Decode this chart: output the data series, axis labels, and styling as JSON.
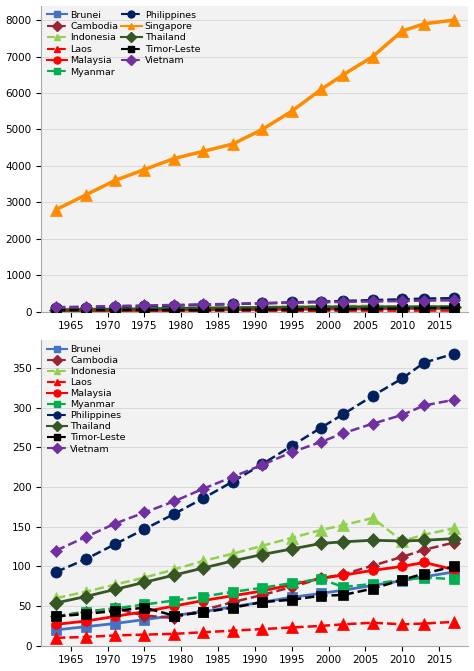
{
  "years": [
    1963,
    1967,
    1971,
    1975,
    1979,
    1983,
    1987,
    1991,
    1995,
    1999,
    2002,
    2006,
    2010,
    2013,
    2017
  ],
  "Brunei": [
    20,
    24,
    28,
    33,
    38,
    43,
    49,
    55,
    61,
    66,
    70,
    76,
    82,
    87,
    93
  ],
  "Cambodia": [
    37,
    43,
    47,
    38,
    35,
    45,
    55,
    64,
    74,
    85,
    90,
    101,
    112,
    121,
    130
  ],
  "Indonesia": [
    60,
    68,
    77,
    86,
    96,
    107,
    116,
    126,
    136,
    146,
    152,
    161,
    132,
    140,
    148
  ],
  "Laos": [
    10,
    11,
    13,
    14,
    15,
    17,
    19,
    21,
    23,
    25,
    27,
    29,
    27,
    28,
    30
  ],
  "Malaysia": [
    27,
    31,
    37,
    43,
    50,
    57,
    63,
    69,
    77,
    85,
    89,
    95,
    100,
    105,
    96
  ],
  "Myanmar": [
    37,
    42,
    47,
    52,
    57,
    62,
    68,
    73,
    79,
    84,
    74,
    78,
    83,
    86,
    84
  ],
  "Philippines": [
    93,
    109,
    128,
    147,
    166,
    186,
    207,
    229,
    252,
    275,
    292,
    315,
    337,
    357,
    368
  ],
  "Singapore": [
    2800,
    3200,
    3600,
    3900,
    4200,
    4400,
    4600,
    5000,
    5500,
    6100,
    6500,
    7000,
    7700,
    7900,
    8000
  ],
  "Thailand": [
    54,
    62,
    71,
    80,
    89,
    98,
    107,
    115,
    122,
    129,
    131,
    133,
    132,
    133,
    135
  ],
  "Timor-Leste": [
    37,
    40,
    44,
    48,
    38,
    42,
    48,
    55,
    58,
    63,
    64,
    72,
    83,
    91,
    100
  ],
  "Vietnam": [
    120,
    137,
    154,
    168,
    182,
    198,
    213,
    228,
    244,
    257,
    268,
    280,
    291,
    303,
    310
  ],
  "styles": {
    "Brunei": {
      "color": "#4472c4",
      "linestyle": "-",
      "marker": "s",
      "ms": 7,
      "lw": 2.0
    },
    "Cambodia": {
      "color": "#9b2335",
      "linestyle": "--",
      "marker": "D",
      "ms": 6,
      "lw": 1.8
    },
    "Indonesia": {
      "color": "#92d050",
      "linestyle": "--",
      "marker": "^",
      "ms": 8,
      "lw": 1.8
    },
    "Laos": {
      "color": "#ff0000",
      "linestyle": "--",
      "marker": "^",
      "ms": 8,
      "lw": 1.8
    },
    "Malaysia": {
      "color": "#ff0000",
      "linestyle": "-",
      "marker": "o",
      "ms": 7,
      "lw": 2.0
    },
    "Myanmar": {
      "color": "#00b050",
      "linestyle": "--",
      "marker": "s",
      "ms": 7,
      "lw": 1.8
    },
    "Philippines": {
      "color": "#002060",
      "linestyle": "--",
      "marker": "o",
      "ms": 8,
      "lw": 1.8
    },
    "Singapore": {
      "color": "#ff8c00",
      "linestyle": "-",
      "marker": "^",
      "ms": 9,
      "lw": 2.5
    },
    "Thailand": {
      "color": "#375623",
      "linestyle": "-",
      "marker": "D",
      "ms": 7,
      "lw": 2.0
    },
    "Timor-Leste": {
      "color": "#000000",
      "linestyle": "--",
      "marker": "s",
      "ms": 7,
      "lw": 1.8
    },
    "Vietnam": {
      "color": "#7030a0",
      "linestyle": "--",
      "marker": "D",
      "ms": 6,
      "lw": 1.8
    }
  },
  "top_col1": [
    "Brunei",
    "Indonesia",
    "Malaysia",
    "Philippines",
    "Thailand",
    "Vietnam"
  ],
  "top_col2": [
    "Cambodia",
    "Laos",
    "Myanmar",
    "Singapore",
    "Timor-Leste"
  ],
  "top_all": [
    "Brunei",
    "Cambodia",
    "Indonesia",
    "Laos",
    "Malaysia",
    "Myanmar",
    "Philippines",
    "Singapore",
    "Thailand",
    "Timor-Leste",
    "Vietnam"
  ],
  "bottom_all": [
    "Brunei",
    "Cambodia",
    "Indonesia",
    "Laos",
    "Malaysia",
    "Myanmar",
    "Philippines",
    "Thailand",
    "Timor-Leste",
    "Vietnam"
  ],
  "bottom_legend": [
    "Brunei",
    "Cambodia",
    "Indonesia",
    "Laos",
    "Malaysia",
    "Myanmar",
    "Philippines",
    "Thailand",
    "Timor-Leste",
    "Vietnam"
  ],
  "xticks": [
    1965,
    1970,
    1975,
    1980,
    1985,
    1990,
    1995,
    2000,
    2005,
    2010,
    2015
  ],
  "xlim": [
    1961,
    2019
  ],
  "bg_color": "#f2f2f2",
  "grid_color": "#d9d9d9"
}
